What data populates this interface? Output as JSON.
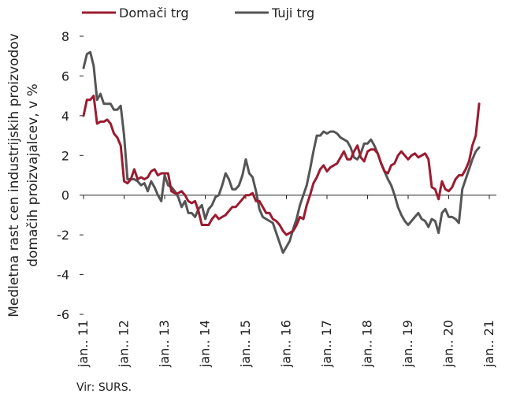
{
  "chart_data": {
    "type": "line",
    "ylabel_lines": [
      "Medletna rast cen industrijskih proizvodov",
      "domačih proizvajalcev, v %"
    ],
    "ylim": [
      -6,
      8
    ],
    "yticks": [
      -6,
      -4,
      -2,
      0,
      2,
      4,
      6,
      8
    ],
    "x_tick_labels": [
      "jan.. 11",
      "jan.. 12",
      "jan.. 13",
      "jan.. 14",
      "jan.. 15",
      "jan.. 16",
      "jan.. 17",
      "jan.. 18",
      "jan.. 19",
      "jan.. 20",
      "jan.. 21"
    ],
    "x_start": "2011-01",
    "grid": false,
    "legend_position": "top-left",
    "source": "Vir: SURS.",
    "series": [
      {
        "name": "Domači trg",
        "color": "#9b1b30",
        "values": [
          4.0,
          4.8,
          4.8,
          5.0,
          3.6,
          3.7,
          3.7,
          3.8,
          3.6,
          3.1,
          2.9,
          2.5,
          0.7,
          0.6,
          0.8,
          1.3,
          0.8,
          0.9,
          0.8,
          0.9,
          1.2,
          1.3,
          1.0,
          1.1,
          1.1,
          1.1,
          0.2,
          0.1,
          0.1,
          0.2,
          0.0,
          -0.3,
          -0.4,
          -0.3,
          -0.8,
          -1.5,
          -1.5,
          -1.5,
          -1.2,
          -1.0,
          -1.2,
          -1.1,
          -1.0,
          -0.8,
          -0.6,
          -0.6,
          -0.4,
          -0.2,
          0.0,
          0.0,
          0.1,
          -0.3,
          -0.3,
          -0.6,
          -0.9,
          -0.9,
          -1.2,
          -1.3,
          -1.5,
          -1.8,
          -2.0,
          -1.9,
          -1.8,
          -1.5,
          -1.1,
          -1.2,
          -0.5,
          0.0,
          0.6,
          0.9,
          1.3,
          1.5,
          1.2,
          1.4,
          1.5,
          1.6,
          1.9,
          2.2,
          1.8,
          1.8,
          2.2,
          2.5,
          1.9,
          1.7,
          2.2,
          2.3,
          2.3,
          2.1,
          1.6,
          1.2,
          1.1,
          1.5,
          1.6,
          2.0,
          2.2,
          2.0,
          1.8,
          2.0,
          2.1,
          1.9,
          2.0,
          2.1,
          1.8,
          0.4,
          0.3,
          -0.2,
          0.7,
          0.3,
          0.2,
          0.4,
          0.8,
          1.0,
          1.0,
          1.3,
          1.7,
          2.5,
          3.0,
          4.6
        ]
      },
      {
        "name": "Tuji trg",
        "color": "#555555",
        "values": [
          6.4,
          7.1,
          7.2,
          6.5,
          4.8,
          5.1,
          4.6,
          4.6,
          4.6,
          4.3,
          4.3,
          4.5,
          3.0,
          0.8,
          0.8,
          0.8,
          0.7,
          0.5,
          0.6,
          0.2,
          0.7,
          0.4,
          0.0,
          -0.3,
          1.0,
          0.5,
          0.4,
          0.2,
          -0.1,
          -0.6,
          -0.3,
          -0.9,
          -0.9,
          -1.1,
          -0.7,
          -0.5,
          -1.2,
          -0.7,
          -0.5,
          -0.1,
          0.0,
          0.5,
          1.1,
          0.8,
          0.3,
          0.3,
          0.5,
          1.0,
          1.8,
          1.1,
          0.9,
          0.2,
          -0.7,
          -1.1,
          -1.2,
          -1.3,
          -1.4,
          -1.9,
          -2.4,
          -2.9,
          -2.6,
          -2.3,
          -1.7,
          -1.2,
          -0.5,
          0.0,
          0.5,
          1.3,
          2.2,
          3.0,
          3.0,
          3.2,
          3.1,
          3.2,
          3.2,
          3.1,
          2.9,
          2.8,
          2.7,
          2.4,
          1.9,
          1.8,
          2.1,
          2.6,
          2.6,
          2.8,
          2.5,
          2.1,
          1.6,
          1.2,
          0.8,
          0.5,
          0.0,
          -0.6,
          -1.0,
          -1.3,
          -1.5,
          -1.3,
          -1.1,
          -0.9,
          -1.2,
          -1.3,
          -1.6,
          -1.2,
          -1.3,
          -1.9,
          -0.9,
          -0.7,
          -1.1,
          -1.1,
          -1.2,
          -1.4,
          0.3,
          0.8,
          1.3,
          1.8,
          2.2,
          2.4
        ]
      }
    ]
  }
}
